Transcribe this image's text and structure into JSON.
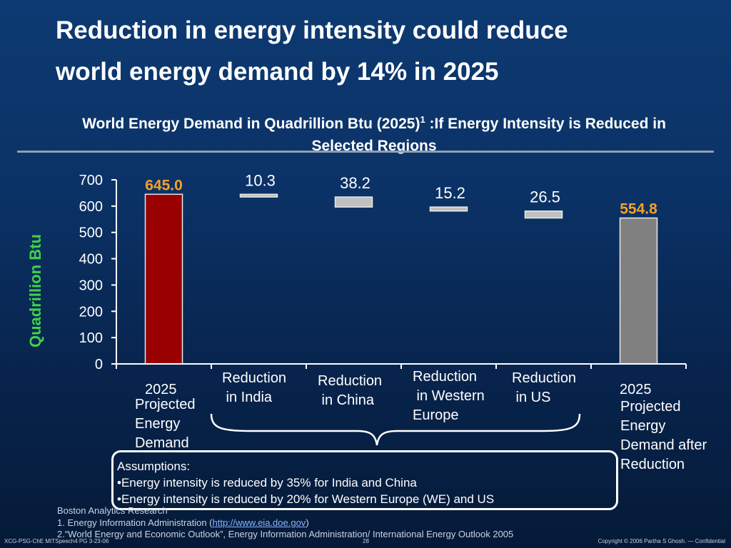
{
  "title_line1": "Reduction in energy intensity could reduce",
  "title_line2": "world energy demand by 14% in 2025",
  "subtitle_line1_main": "World Energy Demand in Quadrillion Btu (2025)",
  "subtitle_sup": "1",
  "subtitle_line1_tail": " :If Energy Intensity is Reduced in",
  "subtitle_line2": "Selected Regions",
  "colors": {
    "demand_bar": "#990000",
    "after_bar": "#808080",
    "reduction_bar": "#c0c0c0",
    "highlight_label": "#f5a02a",
    "ylabel": "#3fd24a"
  },
  "chart_data": {
    "type": "bar",
    "subtype": "waterfall",
    "ylabel": "Quadrillion Btu",
    "ylim": [
      0,
      700
    ],
    "yticks": [
      "0",
      "100",
      "200",
      "300",
      "400",
      "500",
      "600",
      "700"
    ],
    "categories": [
      "2025 Projected Energy Demand",
      "Reduction in India",
      "Reduction in China",
      "Reduction in Western Europe",
      "Reduction in US",
      "2025 Projected Energy Demand after Reduction"
    ],
    "bars": [
      {
        "label": "645.0",
        "kind": "total",
        "base": 0,
        "top": 645.0
      },
      {
        "label": "10.3",
        "kind": "reduction",
        "base": 634.7,
        "top": 645.0
      },
      {
        "label": "38.2",
        "kind": "reduction",
        "base": 596.5,
        "top": 634.7
      },
      {
        "label": "15.2",
        "kind": "reduction",
        "base": 581.3,
        "top": 596.5
      },
      {
        "label": "26.5",
        "kind": "reduction",
        "base": 554.8,
        "top": 581.3
      },
      {
        "label": "554.8",
        "kind": "total",
        "base": 0,
        "top": 554.8
      }
    ]
  },
  "category_labels": {
    "c0_year": "2025",
    "c0_l1": "Projected",
    "c0_l2": "Energy",
    "c0_l3": "Demand",
    "c1_l1": "Reduction",
    "c1_l2": " in India",
    "c2_l1": "Reduction",
    "c2_l2": " in China",
    "c3_l1": "Reduction",
    "c3_l2": " in Western",
    "c3_l3": "Europe",
    "c4_l1": "Reduction",
    "c4_l2": " in US",
    "c5_year": "2025",
    "c5_l1": "Projected",
    "c5_l2": "Energy",
    "c5_l3": "Demand after",
    "c5_l4": "Reduction"
  },
  "assumptions": {
    "heading": "Assumptions:",
    "line1": "•Energy intensity is reduced by 35% for India and China",
    "line2": "•Energy intensity is reduced by 20% for Western Europe (WE) and US"
  },
  "sources": {
    "org": "Boston Analytics Research",
    "note1_pre": "1. Energy Information Administration (",
    "note1_link": "http://www.eia.doe.gov",
    "note1_post": ")",
    "note2": "2.“World Energy and Economic Outlook”, Energy Information Administration/ International Energy Outlook 2005"
  },
  "footer": {
    "left": "XCG-PSG-ChE MITSpeech4 PG 3-23-06",
    "page": "28",
    "right": "Copyright © 2006 Partha S Ghosh. — Confidential"
  }
}
